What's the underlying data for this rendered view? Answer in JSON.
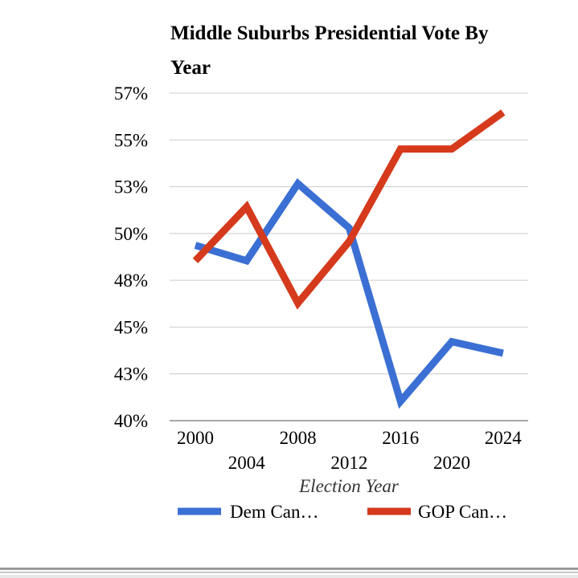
{
  "chart_data": {
    "type": "line",
    "title": "Middle Suburbs Presidential Vote By Year",
    "xlabel": "Election Year",
    "ylabel": "",
    "x": [
      "2000",
      "2004",
      "2008",
      "2012",
      "2016",
      "2020",
      "2024"
    ],
    "y_ticks": [
      "57%",
      "55%",
      "53%",
      "50%",
      "48%",
      "45%",
      "43%",
      "40%"
    ],
    "ylim": [
      40,
      57
    ],
    "grid": true,
    "legend_position": "bottom",
    "series": [
      {
        "name": "Dem Can…",
        "color": "#3b6fd4",
        "values": [
          49.1,
          48.3,
          52.3,
          50.0,
          41.0,
          44.1,
          43.5
        ]
      },
      {
        "name": "GOP Can…",
        "color": "#d53a1c",
        "values": [
          48.3,
          51.1,
          46.1,
          49.3,
          54.1,
          54.1,
          56.0
        ]
      }
    ]
  }
}
